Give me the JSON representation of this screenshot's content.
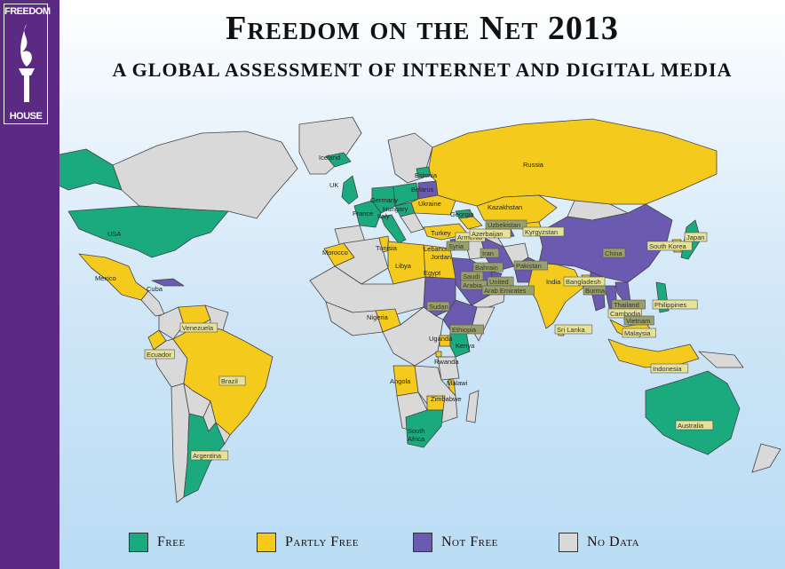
{
  "brand": {
    "line1": "FREEDOM",
    "line2": "HOUSE",
    "sidebar_color": "#5b2a82"
  },
  "title": "Freedom on the Net 2013",
  "subtitle": "A GLOBAL ASSESSMENT OF INTERNET AND DIGITAL MEDIA",
  "colors": {
    "free": "#1ba97e",
    "partly_free": "#f4cb1d",
    "not_free": "#6b5bb0",
    "no_data": "#d9d9d9",
    "ocean_top": "#ffffff",
    "ocean_bottom": "#b9dcf4"
  },
  "legend": [
    {
      "key": "free",
      "label": "Free",
      "color": "#1ba97e"
    },
    {
      "key": "partly_free",
      "label": "Partly Free",
      "color": "#f4cb1d"
    },
    {
      "key": "not_free",
      "label": "Not Free",
      "color": "#6b5bb0"
    },
    {
      "key": "no_data",
      "label": "No Data",
      "color": "#d9d9d9"
    }
  ],
  "countries": [
    {
      "name": "Iceland",
      "status": "free"
    },
    {
      "name": "UK",
      "status": "free"
    },
    {
      "name": "France",
      "status": "free"
    },
    {
      "name": "Germany",
      "status": "free"
    },
    {
      "name": "Italy",
      "status": "free"
    },
    {
      "name": "Hungary",
      "status": "free"
    },
    {
      "name": "Estonia",
      "status": "free"
    },
    {
      "name": "Belarus",
      "status": "not_free"
    },
    {
      "name": "Ukraine",
      "status": "partly_free"
    },
    {
      "name": "Russia",
      "status": "partly_free"
    },
    {
      "name": "Georgia",
      "status": "free"
    },
    {
      "name": "Armenia",
      "status": "free"
    },
    {
      "name": "Azerbaijan",
      "status": "partly_free"
    },
    {
      "name": "Kazakhstan",
      "status": "partly_free"
    },
    {
      "name": "Uzbekistan",
      "status": "not_free"
    },
    {
      "name": "Kyrgyzstan",
      "status": "partly_free"
    },
    {
      "name": "Turkey",
      "status": "partly_free"
    },
    {
      "name": "Syria",
      "status": "not_free"
    },
    {
      "name": "Lebanon",
      "status": "partly_free"
    },
    {
      "name": "Jordan",
      "status": "partly_free"
    },
    {
      "name": "Iran",
      "status": "not_free"
    },
    {
      "name": "Bahrain",
      "status": "not_free"
    },
    {
      "name": "Saudi Arabia",
      "status": "not_free"
    },
    {
      "name": "United Arab Emirates",
      "status": "not_free"
    },
    {
      "name": "Pakistan",
      "status": "not_free"
    },
    {
      "name": "India",
      "status": "partly_free"
    },
    {
      "name": "Bangladesh",
      "status": "partly_free"
    },
    {
      "name": "Burma",
      "status": "not_free"
    },
    {
      "name": "China",
      "status": "not_free"
    },
    {
      "name": "South Korea",
      "status": "partly_free"
    },
    {
      "name": "Japan",
      "status": "free"
    },
    {
      "name": "Thailand",
      "status": "not_free"
    },
    {
      "name": "Cambodia",
      "status": "partly_free"
    },
    {
      "name": "Vietnam",
      "status": "not_free"
    },
    {
      "name": "Philippines",
      "status": "free"
    },
    {
      "name": "Malaysia",
      "status": "partly_free"
    },
    {
      "name": "Indonesia",
      "status": "partly_free"
    },
    {
      "name": "Sri Lanka",
      "status": "partly_free"
    },
    {
      "name": "Australia",
      "status": "free"
    },
    {
      "name": "Morocco",
      "status": "partly_free"
    },
    {
      "name": "Tunisia",
      "status": "partly_free"
    },
    {
      "name": "Libya",
      "status": "partly_free"
    },
    {
      "name": "Egypt",
      "status": "partly_free"
    },
    {
      "name": "Sudan",
      "status": "not_free"
    },
    {
      "name": "Ethiopia",
      "status": "not_free"
    },
    {
      "name": "Nigeria",
      "status": "partly_free"
    },
    {
      "name": "Uganda",
      "status": "partly_free"
    },
    {
      "name": "Kenya",
      "status": "free"
    },
    {
      "name": "Rwanda",
      "status": "partly_free"
    },
    {
      "name": "Malawi",
      "status": "partly_free"
    },
    {
      "name": "Angola",
      "status": "partly_free"
    },
    {
      "name": "Zimbabwe",
      "status": "partly_free"
    },
    {
      "name": "South Africa",
      "status": "free"
    },
    {
      "name": "USA",
      "status": "free"
    },
    {
      "name": "Mexico",
      "status": "partly_free"
    },
    {
      "name": "Cuba",
      "status": "not_free"
    },
    {
      "name": "Venezuela",
      "status": "partly_free"
    },
    {
      "name": "Ecuador",
      "status": "partly_free"
    },
    {
      "name": "Brazil",
      "status": "partly_free"
    },
    {
      "name": "Argentina",
      "status": "free"
    }
  ]
}
